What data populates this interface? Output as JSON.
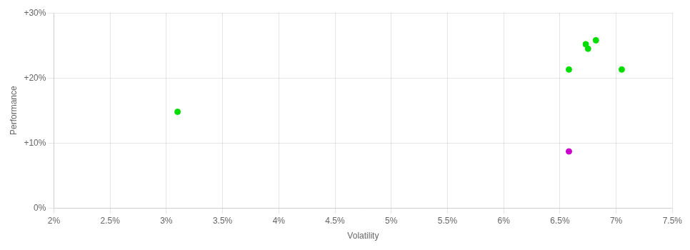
{
  "chart_data": {
    "type": "scatter",
    "xlabel": "Volatility",
    "ylabel": "Performance",
    "xlim": [
      0.02,
      0.075
    ],
    "ylim": [
      0.0,
      0.3
    ],
    "xticks": [
      {
        "value": 0.02,
        "label": "2%"
      },
      {
        "value": 0.025,
        "label": "2.5%"
      },
      {
        "value": 0.03,
        "label": "3%"
      },
      {
        "value": 0.035,
        "label": "3.5%"
      },
      {
        "value": 0.04,
        "label": "4%"
      },
      {
        "value": 0.045,
        "label": "4.5%"
      },
      {
        "value": 0.05,
        "label": "5%"
      },
      {
        "value": 0.055,
        "label": "5.5%"
      },
      {
        "value": 0.06,
        "label": "6%"
      },
      {
        "value": 0.065,
        "label": "6.5%"
      },
      {
        "value": 0.07,
        "label": "7%"
      },
      {
        "value": 0.075,
        "label": "7.5%"
      }
    ],
    "yticks": [
      {
        "value": 0.0,
        "label": "0%"
      },
      {
        "value": 0.1,
        "label": "+10%"
      },
      {
        "value": 0.2,
        "label": "+20%"
      },
      {
        "value": 0.3,
        "label": "+30%"
      }
    ],
    "grid": true,
    "series": [
      {
        "color": "#00dd00",
        "x": [
          0.031,
          0.0658,
          0.0675,
          0.0682,
          0.0673,
          0.0705
        ],
        "values": [
          0.148,
          0.213,
          0.245,
          0.258,
          0.252,
          0.213
        ]
      },
      {
        "color": "#cc00cc",
        "x": [
          0.0658
        ],
        "values": [
          0.087
        ]
      }
    ]
  }
}
